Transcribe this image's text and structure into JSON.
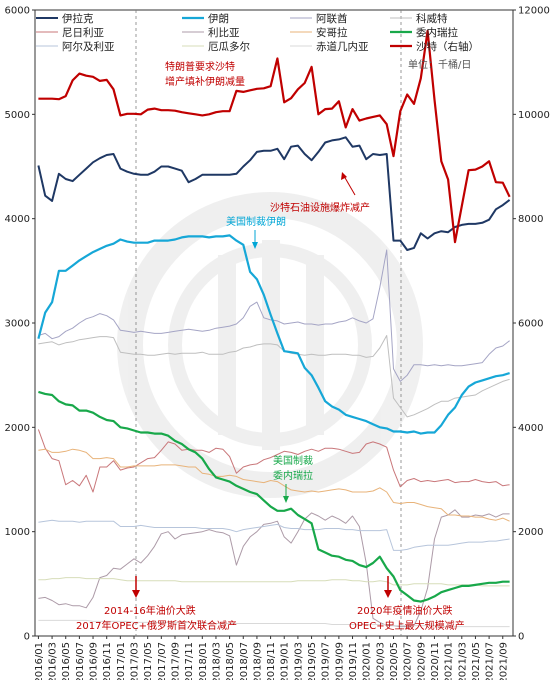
{
  "chart_data": {
    "type": "line",
    "x": [
      "2016/01",
      "2016/02",
      "2016/03",
      "2016/04",
      "2016/05",
      "2016/06",
      "2016/07",
      "2016/08",
      "2016/09",
      "2016/10",
      "2016/11",
      "2016/12",
      "2017/01",
      "2017/02",
      "2017/03",
      "2017/04",
      "2017/05",
      "2017/06",
      "2017/07",
      "2017/08",
      "2017/09",
      "2017/10",
      "2017/11",
      "2017/12",
      "2018/01",
      "2018/02",
      "2018/03",
      "2018/04",
      "2018/05",
      "2018/06",
      "2018/07",
      "2018/08",
      "2018/09",
      "2018/10",
      "2018/11",
      "2018/12",
      "2019/01",
      "2019/02",
      "2019/03",
      "2019/04",
      "2019/05",
      "2019/06",
      "2019/07",
      "2019/08",
      "2019/09",
      "2019/10",
      "2019/11",
      "2019/12",
      "2020/01",
      "2020/02",
      "2020/03",
      "2020/04",
      "2020/05",
      "2020/06",
      "2020/07",
      "2020/08",
      "2020/09",
      "2020/10",
      "2020/11",
      "2020/12",
      "2021/01",
      "2021/02",
      "2021/03",
      "2021/04",
      "2021/05",
      "2021/06",
      "2021/07",
      "2021/08",
      "2021/09",
      "2021/10"
    ],
    "x_tick_labels": [
      "2016/01",
      "2016/03",
      "2016/05",
      "2016/07",
      "2016/09",
      "2016/11",
      "2017/01",
      "2017/03",
      "2017/05",
      "2017/07",
      "2017/09",
      "2017/11",
      "2018/01",
      "2018/03",
      "2018/05",
      "2018/07",
      "2018/09",
      "2018/11",
      "2019/01",
      "2019/03",
      "2019/05",
      "2019/07",
      "2019/09",
      "2019/11",
      "2020/01",
      "2020/03",
      "2020/05",
      "2020/07",
      "2020/09",
      "2020/11",
      "2021/01",
      "2021/03",
      "2021/05",
      "2021/07",
      "2021/09"
    ],
    "ylim_left": [
      0,
      6000
    ],
    "ylim_right": [
      0,
      12000
    ],
    "yticks_left": [
      "0",
      "1000",
      "2000",
      "3000",
      "4000",
      "5000",
      "6000"
    ],
    "yticks_right": [
      "0",
      "2000",
      "4000",
      "6000",
      "8000",
      "10000",
      "12000"
    ],
    "unit_label": "单位：千桶/日",
    "legend_placement": "top",
    "series": [
      {
        "name": "伊拉克",
        "color": "#1f3864",
        "width": 2,
        "axis": "left",
        "values": [
          4510,
          4220,
          4170,
          4430,
          4380,
          4360,
          4420,
          4480,
          4540,
          4580,
          4610,
          4620,
          4480,
          4450,
          4430,
          4420,
          4420,
          4450,
          4500,
          4500,
          4480,
          4460,
          4350,
          4380,
          4420,
          4420,
          4420,
          4420,
          4420,
          4430,
          4500,
          4560,
          4640,
          4650,
          4650,
          4670,
          4570,
          4690,
          4700,
          4620,
          4560,
          4640,
          4730,
          4750,
          4760,
          4780,
          4690,
          4700,
          4570,
          4620,
          4610,
          4620,
          3790,
          3790,
          3700,
          3720,
          3860,
          3810,
          3860,
          3880,
          3870,
          3920,
          3940,
          3950,
          3950,
          3960,
          3990,
          4090,
          4130,
          4180
        ]
      },
      {
        "name": "伊朗",
        "color": "#16a7d7",
        "width": 2.2,
        "axis": "left",
        "values": [
          2850,
          3100,
          3200,
          3500,
          3500,
          3550,
          3600,
          3640,
          3680,
          3710,
          3740,
          3760,
          3800,
          3780,
          3770,
          3770,
          3770,
          3790,
          3790,
          3790,
          3800,
          3820,
          3830,
          3830,
          3830,
          3820,
          3830,
          3830,
          3840,
          3790,
          3750,
          3490,
          3420,
          3270,
          3080,
          2900,
          2730,
          2720,
          2710,
          2570,
          2500,
          2380,
          2250,
          2200,
          2170,
          2120,
          2100,
          2080,
          2060,
          2030,
          2000,
          1990,
          1960,
          1960,
          1950,
          1960,
          1940,
          1950,
          1950,
          2020,
          2120,
          2190,
          2310,
          2390,
          2430,
          2450,
          2470,
          2490,
          2500,
          2520
        ]
      },
      {
        "name": "阿联酋",
        "color": "#a5a5c5",
        "width": 1,
        "axis": "left",
        "values": [
          2880,
          2900,
          2850,
          2870,
          2920,
          2950,
          3000,
          3040,
          3060,
          3090,
          3070,
          3030,
          2930,
          2920,
          2910,
          2920,
          2910,
          2900,
          2900,
          2910,
          2920,
          2930,
          2940,
          2930,
          2920,
          2930,
          2950,
          2960,
          2970,
          2990,
          3050,
          3160,
          3200,
          3050,
          3030,
          3020,
          2990,
          3000,
          3010,
          2990,
          2990,
          2980,
          2990,
          2990,
          3010,
          3020,
          3050,
          3020,
          3000,
          3040,
          3340,
          3700,
          2560,
          2440,
          2500,
          2600,
          2600,
          2590,
          2600,
          2590,
          2600,
          2590,
          2590,
          2600,
          2610,
          2620,
          2700,
          2760,
          2780,
          2830
        ]
      },
      {
        "name": "科威特",
        "color": "#bfbfbf",
        "width": 1,
        "axis": "left",
        "values": [
          2800,
          2810,
          2820,
          2790,
          2810,
          2820,
          2840,
          2850,
          2860,
          2870,
          2870,
          2860,
          2720,
          2710,
          2700,
          2700,
          2690,
          2690,
          2700,
          2710,
          2700,
          2710,
          2710,
          2710,
          2720,
          2700,
          2700,
          2700,
          2720,
          2730,
          2760,
          2770,
          2790,
          2800,
          2800,
          2790,
          2730,
          2710,
          2700,
          2690,
          2700,
          2690,
          2690,
          2700,
          2700,
          2700,
          2690,
          2690,
          2670,
          2680,
          2760,
          2880,
          2280,
          2190,
          2100,
          2120,
          2150,
          2180,
          2220,
          2250,
          2250,
          2280,
          2290,
          2300,
          2310,
          2350,
          2380,
          2410,
          2440,
          2460
        ]
      },
      {
        "name": "尼日利亚",
        "color": "#c9777a",
        "width": 1,
        "axis": "left",
        "values": [
          1980,
          1800,
          1700,
          1680,
          1450,
          1490,
          1440,
          1540,
          1380,
          1620,
          1620,
          1680,
          1590,
          1610,
          1620,
          1660,
          1700,
          1710,
          1780,
          1860,
          1840,
          1780,
          1790,
          1780,
          1780,
          1760,
          1800,
          1790,
          1720,
          1560,
          1620,
          1640,
          1650,
          1690,
          1710,
          1740,
          1770,
          1760,
          1740,
          1770,
          1790,
          1770,
          1800,
          1800,
          1790,
          1770,
          1750,
          1760,
          1840,
          1860,
          1840,
          1810,
          1590,
          1430,
          1490,
          1510,
          1480,
          1490,
          1480,
          1490,
          1500,
          1470,
          1480,
          1480,
          1500,
          1480,
          1470,
          1480,
          1440,
          1450
        ]
      },
      {
        "name": "利比亚",
        "color": "#ad9ba8",
        "width": 1,
        "axis": "left",
        "values": [
          360,
          370,
          340,
          300,
          310,
          290,
          290,
          270,
          370,
          560,
          580,
          650,
          640,
          690,
          740,
          700,
          770,
          860,
          980,
          1000,
          930,
          970,
          980,
          990,
          1000,
          1020,
          1000,
          990,
          960,
          680,
          860,
          950,
          1000,
          1070,
          1080,
          1100,
          950,
          890,
          1000,
          1120,
          1180,
          1150,
          1110,
          1150,
          1120,
          1080,
          1150,
          1050,
          700,
          170,
          130,
          100,
          100,
          90,
          90,
          100,
          240,
          460,
          930,
          1140,
          1160,
          1210,
          1140,
          1140,
          1160,
          1150,
          1170,
          1140,
          1170,
          1170
        ]
      },
      {
        "name": "安哥拉",
        "color": "#e8b37a",
        "width": 1,
        "axis": "left",
        "values": [
          1780,
          1790,
          1760,
          1760,
          1770,
          1790,
          1780,
          1760,
          1700,
          1700,
          1710,
          1700,
          1620,
          1620,
          1630,
          1630,
          1630,
          1630,
          1640,
          1640,
          1640,
          1630,
          1620,
          1620,
          1560,
          1550,
          1530,
          1530,
          1540,
          1530,
          1500,
          1490,
          1480,
          1470,
          1490,
          1480,
          1440,
          1400,
          1390,
          1380,
          1390,
          1380,
          1390,
          1400,
          1410,
          1400,
          1380,
          1380,
          1380,
          1390,
          1420,
          1380,
          1280,
          1270,
          1280,
          1280,
          1260,
          1240,
          1230,
          1220,
          1160,
          1160,
          1150,
          1150,
          1140,
          1140,
          1120,
          1110,
          1130,
          1100
        ]
      },
      {
        "name": "委内瑞拉",
        "color": "#18a84a",
        "width": 2.2,
        "axis": "left",
        "values": [
          2340,
          2320,
          2310,
          2250,
          2220,
          2210,
          2160,
          2160,
          2140,
          2100,
          2070,
          2060,
          2000,
          1990,
          1970,
          1950,
          1950,
          1940,
          1940,
          1920,
          1870,
          1840,
          1790,
          1760,
          1700,
          1600,
          1520,
          1500,
          1480,
          1440,
          1410,
          1380,
          1360,
          1300,
          1240,
          1200,
          1200,
          1220,
          1160,
          1120,
          1080,
          830,
          800,
          770,
          760,
          730,
          720,
          680,
          660,
          700,
          760,
          650,
          570,
          440,
          390,
          340,
          330,
          350,
          380,
          420,
          440,
          460,
          480,
          480,
          490,
          500,
          510,
          510,
          520,
          520
        ]
      },
      {
        "name": "阿尔及利亚",
        "color": "#b7c5db",
        "width": 1,
        "axis": "left",
        "values": [
          1090,
          1100,
          1110,
          1100,
          1100,
          1100,
          1090,
          1100,
          1100,
          1100,
          1100,
          1100,
          1050,
          1050,
          1050,
          1060,
          1050,
          1040,
          1040,
          1040,
          1040,
          1040,
          1040,
          1040,
          1030,
          1030,
          1030,
          1030,
          1020,
          1000,
          1020,
          1030,
          1040,
          1050,
          1060,
          1070,
          1040,
          1030,
          1030,
          1020,
          1020,
          1020,
          1030,
          1030,
          1030,
          1020,
          1020,
          1010,
          1010,
          1010,
          1010,
          1020,
          820,
          820,
          830,
          850,
          860,
          870,
          870,
          870,
          870,
          880,
          890,
          900,
          900,
          900,
          910,
          910,
          920,
          930
        ]
      },
      {
        "name": "厄瓜多尔",
        "color": "#d7ddba",
        "width": 1,
        "axis": "left",
        "values": [
          540,
          540,
          550,
          550,
          560,
          560,
          560,
          550,
          550,
          550,
          550,
          550,
          540,
          530,
          530,
          530,
          530,
          530,
          530,
          530,
          530,
          520,
          520,
          520,
          520,
          520,
          520,
          520,
          520,
          520,
          520,
          520,
          520,
          520,
          520,
          520,
          520,
          520,
          530,
          530,
          530,
          530,
          530,
          540,
          540,
          540,
          530,
          530,
          520,
          520,
          530,
          520,
          490,
          490,
          490,
          500,
          500,
          500,
          500,
          500,
          490,
          490,
          490,
          490,
          490,
          480,
          480,
          480,
          480,
          480
        ]
      },
      {
        "name": "赤道几内亚",
        "color": "#d9d9d9",
        "width": 1,
        "axis": "left",
        "values": [
          150,
          150,
          150,
          150,
          150,
          150,
          150,
          150,
          140,
          140,
          140,
          140,
          140,
          140,
          130,
          130,
          130,
          130,
          130,
          130,
          130,
          130,
          130,
          120,
          120,
          120,
          120,
          120,
          120,
          120,
          120,
          120,
          120,
          120,
          120,
          120,
          120,
          120,
          120,
          120,
          120,
          120,
          120,
          110,
          110,
          110,
          110,
          110,
          110,
          110,
          110,
          110,
          100,
          100,
          100,
          100,
          100,
          100,
          100,
          90,
          90,
          90,
          90,
          90,
          90,
          90,
          90,
          90,
          90,
          90
        ]
      },
      {
        "name": "沙特（右轴）",
        "color": "#c00000",
        "width": 2.2,
        "axis": "right",
        "values": [
          10300,
          10300,
          10300,
          10290,
          10350,
          10650,
          10780,
          10740,
          10720,
          10640,
          10660,
          10480,
          9980,
          10010,
          10010,
          10000,
          10090,
          10110,
          10080,
          10080,
          10070,
          10040,
          10020,
          10000,
          9980,
          10000,
          10040,
          10060,
          10060,
          10450,
          10430,
          10460,
          10490,
          10500,
          10540,
          11070,
          10230,
          10310,
          10480,
          10600,
          10910,
          10000,
          10100,
          10110,
          10250,
          9750,
          10100,
          9880,
          9920,
          9950,
          9980,
          9810,
          9200,
          10060,
          10380,
          10200,
          10690,
          11600,
          10280,
          9100,
          8750,
          7550,
          8240,
          8930,
          8940,
          9000,
          9100,
          8700,
          8690,
          8420
        ]
      }
    ],
    "annotations": [
      {
        "text": "特朗普要求沙特",
        "color": "red"
      },
      {
        "text": "增产填补伊朗减量",
        "color": "red"
      },
      {
        "text": "沙特石油设施爆炸减产",
        "color": "red"
      },
      {
        "text": "美国制裁伊朗",
        "color": "blue"
      },
      {
        "text": "美国制裁",
        "color": "green"
      },
      {
        "text": "委内瑞拉",
        "color": "green"
      },
      {
        "text": "2014-16年油价大跌",
        "color": "red"
      },
      {
        "text": "2017年OPEC+俄罗斯首次联合减产",
        "color": "red"
      },
      {
        "text": "2020年疫情油价大跌",
        "color": "red"
      },
      {
        "text": "OPEC+史上最大规模减产",
        "color": "red"
      }
    ]
  }
}
